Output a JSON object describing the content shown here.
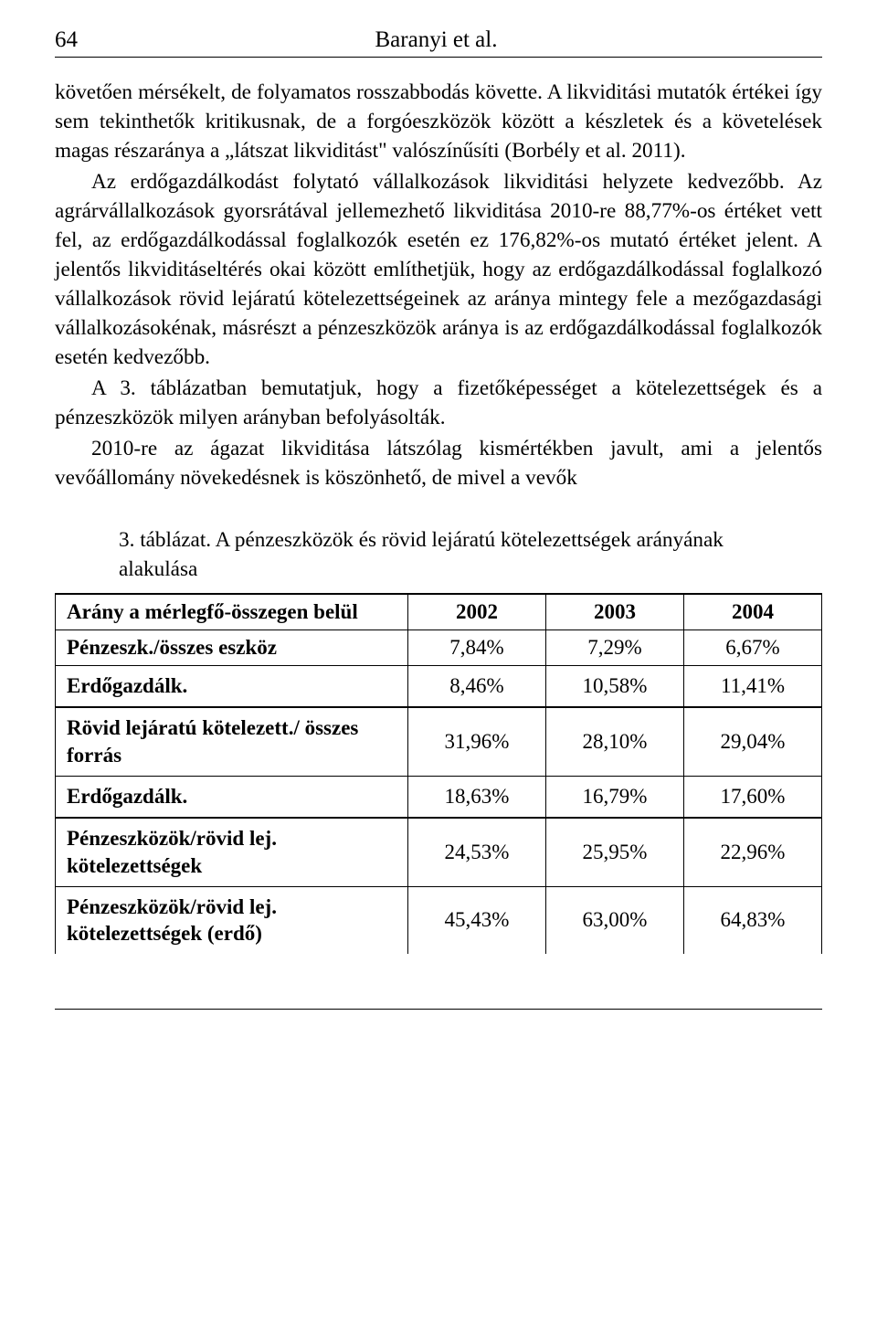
{
  "header": {
    "page_number": "64",
    "authors": "Baranyi et al."
  },
  "paragraphs": {
    "p1": "követően mérsékelt, de folyamatos rosszabbodás követte. A likviditási mutatók értékei így sem tekinthetők kritikusnak, de a forgóeszközök között a készletek és a követelések magas részaránya a „látszat likviditást\" valószínűsíti (Borbély et al. 2011).",
    "p2": "Az erdőgazdálkodást folytató vállalkozások likviditási helyzete kedvezőbb. Az agrárvállalkozások gyorsrátával jellemezhető likviditása 2010-re 88,77%-os értéket vett fel, az erdőgazdálkodással foglalkozók esetén ez 176,82%-os mutató értéket jelent. A jelentős likviditáseltérés okai között említhetjük, hogy az erdőgazdálkodással foglalkozó vállalkozások rövid lejáratú kötelezettségeinek az aránya mintegy fele a mezőgazdasági vállalkozásokénak, másrészt a pénzeszközök aránya is az erdőgazdálkodással foglalkozók esetén kedvezőbb.",
    "p3": "A 3. táblázatban bemutatjuk, hogy a fizetőképességet a kötelezettségek és a pénzeszközök milyen arányban befolyásolták.",
    "p4": "2010-re az ágazat likviditása látszólag kismértékben javult, ami a jelentős vevőállomány növekedésnek is köszönhető, de mivel a vevők"
  },
  "table": {
    "caption": "3. táblázat. A pénzeszközök és rövid lejáratú kötelezettségek arányának alakulása",
    "headers": {
      "col0": "Arány a mérlegfő-összegen belül",
      "col1": "2002",
      "col2": "2003",
      "col3": "2004"
    },
    "rows": [
      {
        "label": "Pénzeszk./összes eszköz",
        "c1": "7,84%",
        "c2": "7,29%",
        "c3": "6,67%"
      },
      {
        "label": "Erdőgazdálk.",
        "c1": "8,46%",
        "c2": "10,58%",
        "c3": "11,41%"
      },
      {
        "label": "Rövid lejáratú kötelezett./ összes forrás",
        "c1": "31,96%",
        "c2": "28,10%",
        "c3": "29,04%"
      },
      {
        "label": "Erdőgazdálk.",
        "c1": "18,63%",
        "c2": "16,79%",
        "c3": "17,60%"
      },
      {
        "label": "Pénzeszközök/rövid lej. kötelezettségek",
        "c1": "24,53%",
        "c2": "25,95%",
        "c3": "22,96%"
      },
      {
        "label": "Pénzeszközök/rövid lej. kötelezettségek (erdő)",
        "c1": "45,43%",
        "c2": "63,00%",
        "c3": "64,83%"
      }
    ]
  }
}
